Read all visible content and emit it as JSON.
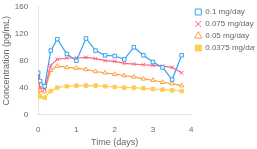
{
  "chart_data": {
    "type": "line",
    "xlabel": "Time (days)",
    "ylabel": "Concentration (pg/mL)",
    "x": [
      0.0,
      0.05,
      0.17,
      0.33,
      0.5,
      0.75,
      1.0,
      1.25,
      1.5,
      1.75,
      2.0,
      2.25,
      2.5,
      2.75,
      3.0,
      3.25,
      3.5,
      3.75
    ],
    "series": [
      {
        "name": "0.1 mg/day",
        "marker": "square-open",
        "values": [
          62,
          50,
          42,
          95,
          112,
          90,
          80,
          113,
          95,
          88,
          87,
          82,
          100,
          88,
          78,
          70,
          52,
          88
        ]
      },
      {
        "name": "0.075 mg/day",
        "marker": "x",
        "values": [
          60,
          40,
          38,
          73,
          82,
          84,
          84,
          85,
          83,
          80,
          79,
          76,
          75,
          74,
          73,
          72,
          70,
          62
        ]
      },
      {
        "name": "0.05 mg/day",
        "marker": "triangle-open",
        "values": [
          58,
          36,
          34,
          66,
          72,
          70,
          69,
          67,
          64,
          62,
          60,
          58,
          56,
          53,
          51,
          48,
          46,
          43
        ]
      },
      {
        "name": "0.0375 mg/day",
        "marker": "square",
        "values": [
          34,
          27,
          25,
          35,
          40,
          42,
          43,
          43,
          43,
          42,
          41,
          40,
          40,
          39,
          38,
          37,
          36,
          35
        ]
      }
    ],
    "xlim": [
      0,
      4
    ],
    "ylim": [
      0,
      160
    ],
    "xticks": [
      0,
      1,
      2,
      3,
      4
    ],
    "yticks": [
      0,
      40,
      80,
      120,
      160
    ],
    "grid": false,
    "legend": "upper right"
  }
}
